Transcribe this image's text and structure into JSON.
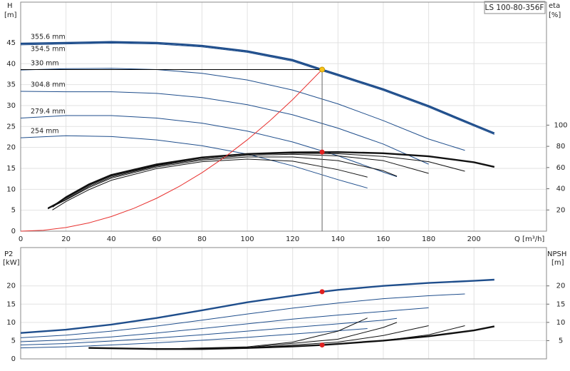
{
  "chart_data": [
    {
      "type": "line",
      "title": "LS 100-80-356F",
      "y_label": "H",
      "y_unit": "[m]",
      "y2_label": "eta",
      "y2_unit": "[%]",
      "x_label": "Q [m³/h]",
      "xlim": [
        0,
        232
      ],
      "xticks": [
        0,
        20,
        40,
        60,
        80,
        100,
        120,
        140,
        160,
        180,
        200
      ],
      "ylim": [
        0,
        54.7
      ],
      "yticks": [
        0,
        5,
        10,
        15,
        20,
        25,
        30,
        35,
        40,
        45
      ],
      "y2lim": [
        0,
        216
      ],
      "y2ticks": [
        20,
        40,
        60,
        80,
        100
      ],
      "grid": true,
      "series": [
        {
          "name": "355.6 mm",
          "color": "#1f4e8c",
          "axis": "y",
          "x": [
            0,
            20,
            40,
            60,
            80,
            100,
            120,
            133,
            140,
            160,
            180,
            200,
            209
          ],
          "values": [
            44.8,
            45,
            45.2,
            45,
            44.3,
            43,
            40.9,
            38.6,
            37.4,
            33.9,
            29.9,
            25.4,
            23.4
          ]
        },
        {
          "name": "354.5 mm",
          "color": "#1f4e8c",
          "axis": "y",
          "x": [
            0,
            20,
            40,
            60,
            80,
            100,
            120,
            133,
            140,
            160,
            180,
            200,
            209
          ],
          "values": [
            44.5,
            44.7,
            44.9,
            44.7,
            44,
            42.7,
            40.6,
            38.3,
            37.1,
            33.6,
            29.6,
            25.1,
            23.1
          ]
        },
        {
          "name": "330 mm",
          "color": "#1f4e8c",
          "axis": "y",
          "x": [
            0,
            20,
            40,
            60,
            80,
            100,
            120,
            140,
            160,
            180,
            196
          ],
          "values": [
            38.5,
            38.8,
            38.9,
            38.6,
            37.7,
            36.1,
            33.7,
            30.4,
            26.4,
            22,
            19.3
          ]
        },
        {
          "name": "304.8 mm",
          "color": "#1f4e8c",
          "axis": "y",
          "x": [
            0,
            20,
            40,
            60,
            80,
            100,
            120,
            140,
            160,
            180
          ],
          "values": [
            33.4,
            33.3,
            33.3,
            32.9,
            31.9,
            30.2,
            27.8,
            24.6,
            20.8,
            16
          ]
        },
        {
          "name": "279.4 mm",
          "color": "#1f4e8c",
          "axis": "y",
          "x": [
            0,
            20,
            40,
            60,
            80,
            100,
            120,
            140,
            160,
            166
          ],
          "values": [
            27,
            27.6,
            27.6,
            27,
            25.8,
            23.9,
            21.3,
            18,
            14.1,
            13
          ]
        },
        {
          "name": "254 mm",
          "color": "#1f4e8c",
          "axis": "y",
          "x": [
            0,
            20,
            40,
            60,
            80,
            100,
            120,
            140,
            153
          ],
          "values": [
            22.3,
            22.8,
            22.6,
            21.8,
            20.4,
            18.4,
            15.6,
            12.3,
            10.3
          ]
        },
        {
          "color": "#111111",
          "axis": "y2",
          "x": [
            14,
            20,
            30,
            40,
            60,
            80,
            100,
            120,
            140,
            160,
            180,
            200,
            209
          ],
          "values": [
            23,
            32,
            44,
            53,
            63,
            69.5,
            72.8,
            74.3,
            74.6,
            73.5,
            70.6,
            65,
            60.6
          ]
        },
        {
          "color": "#111111",
          "axis": "y2",
          "x": [
            12,
            20,
            30,
            40,
            60,
            80,
            100,
            120,
            140,
            160,
            180,
            196
          ],
          "values": [
            22,
            31,
            43,
            52,
            62,
            69,
            72.5,
            73.5,
            73,
            70.5,
            65.5,
            56.5
          ]
        },
        {
          "color": "#111111",
          "axis": "y2",
          "x": [
            12,
            20,
            30,
            40,
            60,
            80,
            100,
            120,
            140,
            160,
            180
          ],
          "values": [
            21.5,
            30,
            42,
            51,
            61.5,
            68,
            71.5,
            72.5,
            71,
            66.5,
            54.5
          ]
        },
        {
          "color": "#111111",
          "axis": "y2",
          "x": [
            12,
            20,
            30,
            40,
            60,
            80,
            100,
            120,
            140,
            160,
            166
          ],
          "values": [
            21,
            29.5,
            41,
            50,
            60.5,
            67,
            70,
            70,
            66.5,
            57,
            51.8
          ]
        },
        {
          "color": "#111111",
          "axis": "y2",
          "x": [
            14,
            20,
            30,
            40,
            60,
            80,
            100,
            120,
            140,
            153
          ],
          "values": [
            20,
            28,
            39,
            48,
            59,
            65.5,
            68,
            66,
            58,
            51
          ]
        },
        {
          "color": "#e8312f",
          "axis": "y",
          "x": [
            0,
            10,
            20,
            30,
            40,
            50,
            60,
            70,
            80,
            90,
            100,
            110,
            120,
            133
          ],
          "values": [
            0,
            0.22,
            0.87,
            1.96,
            3.49,
            5.46,
            7.86,
            10.7,
            13.96,
            17.67,
            21.82,
            26.4,
            31.42,
            38.6
          ]
        }
      ],
      "operating_point": {
        "x": 133,
        "y": 38.6,
        "y2": 74.6,
        "color": "#f7c31a",
        "y2_color": "#e02020"
      }
    },
    {
      "type": "line",
      "y_label": "P2",
      "y_unit": "[kW]",
      "y2_label": "NPSH",
      "y2_unit": "[m]",
      "xlim": [
        0,
        232
      ],
      "ylim": [
        0,
        30.5
      ],
      "yticks": [
        0,
        5,
        10,
        15,
        20
      ],
      "y2lim": [
        0,
        30.5
      ],
      "y2ticks": [
        5,
        10,
        15,
        20
      ],
      "grid": true,
      "series": [
        {
          "color": "#1f4e8c",
          "axis": "y",
          "x": [
            0,
            20,
            40,
            60,
            80,
            100,
            120,
            133,
            140,
            160,
            180,
            200,
            209
          ],
          "values": [
            7.1,
            8,
            9.4,
            11.2,
            13.3,
            15.5,
            17.3,
            18.4,
            18.9,
            20,
            20.8,
            21.4,
            21.7
          ]
        },
        {
          "color": "#1f4e8c",
          "axis": "y",
          "x": [
            0,
            20,
            40,
            60,
            80,
            100,
            120,
            140,
            160,
            180,
            196
          ],
          "values": [
            5.8,
            6.5,
            7.6,
            9,
            10.6,
            12.3,
            13.9,
            15.3,
            16.5,
            17.3,
            17.8
          ]
        },
        {
          "color": "#1f4e8c",
          "axis": "y",
          "x": [
            0,
            20,
            40,
            60,
            80,
            100,
            120,
            140,
            160,
            180
          ],
          "values": [
            4.7,
            5.2,
            6,
            7.1,
            8.3,
            9.6,
            10.9,
            12,
            13,
            14
          ]
        },
        {
          "color": "#1f4e8c",
          "axis": "y",
          "x": [
            0,
            20,
            40,
            60,
            80,
            100,
            120,
            140,
            160,
            166
          ],
          "values": [
            3.8,
            4.2,
            4.9,
            5.7,
            6.6,
            7.6,
            8.6,
            9.6,
            10.6,
            11.1
          ]
        },
        {
          "color": "#1f4e8c",
          "axis": "y",
          "x": [
            0,
            20,
            40,
            60,
            80,
            100,
            120,
            140,
            153
          ],
          "values": [
            3,
            3.3,
            3.8,
            4.4,
            5.1,
            5.9,
            6.8,
            7.7,
            8.3
          ]
        },
        {
          "color": "#111111",
          "axis": "y2",
          "x": [
            30,
            60,
            80,
            100,
            120,
            133,
            140,
            160,
            180,
            200,
            209
          ],
          "values": [
            3,
            2.7,
            2.7,
            3,
            3.4,
            3.8,
            4.1,
            5,
            6.2,
            7.8,
            8.9
          ]
        },
        {
          "color": "#111111",
          "axis": "y2",
          "x": [
            30,
            60,
            100,
            140,
            160,
            180,
            196
          ],
          "values": [
            3,
            2.7,
            2.9,
            4,
            5,
            6.6,
            9.1
          ]
        },
        {
          "color": "#111111",
          "axis": "y2",
          "x": [
            30,
            60,
            100,
            140,
            160,
            180
          ],
          "values": [
            3,
            2.7,
            3,
            4.6,
            6.4,
            9.1
          ]
        },
        {
          "color": "#111111",
          "axis": "y2",
          "x": [
            30,
            60,
            100,
            140,
            160,
            166
          ],
          "values": [
            3,
            2.7,
            3.1,
            5.4,
            8.6,
            10
          ]
        },
        {
          "color": "#111111",
          "axis": "y2",
          "x": [
            30,
            60,
            100,
            120,
            140,
            153
          ],
          "values": [
            3,
            2.7,
            3.3,
            4.6,
            7.6,
            11.2
          ]
        }
      ],
      "operating_point": {
        "x": 133,
        "y": 18.4,
        "y2": 3.8,
        "color": "#e02020",
        "y2_color": "#e02020"
      }
    }
  ]
}
